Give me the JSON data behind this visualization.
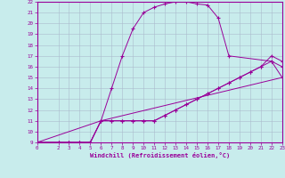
{
  "xlabel": "Windchill (Refroidissement éolien,°C)",
  "xlim": [
    0,
    23
  ],
  "ylim": [
    9,
    22
  ],
  "yticks": [
    9,
    10,
    11,
    12,
    13,
    14,
    15,
    16,
    17,
    18,
    19,
    20,
    21,
    22
  ],
  "xticks": [
    0,
    2,
    3,
    4,
    5,
    6,
    7,
    8,
    9,
    10,
    11,
    12,
    13,
    14,
    15,
    16,
    17,
    18,
    19,
    20,
    21,
    22,
    23
  ],
  "bg_color": "#c8ecec",
  "line_color": "#990099",
  "grid_color": "#aabbcc",
  "line1_x": [
    0,
    2,
    3,
    4,
    5,
    6,
    7,
    8,
    9,
    10,
    11,
    12,
    13,
    14,
    15,
    16,
    17,
    18,
    22,
    23
  ],
  "line1_y": [
    9,
    9,
    9,
    9,
    9,
    11,
    14,
    17,
    19.5,
    21,
    21.5,
    21.8,
    22,
    22,
    21.8,
    21.7,
    20.5,
    17,
    16.5,
    16
  ],
  "line2_x": [
    0,
    2,
    3,
    4,
    5,
    6,
    7,
    8,
    9,
    10,
    11,
    12,
    13,
    14,
    15,
    16,
    17,
    18,
    19,
    20,
    21,
    22,
    23
  ],
  "line2_y": [
    9,
    9,
    9,
    9,
    9,
    11,
    11,
    11,
    11,
    11,
    11,
    11.5,
    12,
    12.5,
    13,
    13.5,
    14,
    14.5,
    15,
    15.5,
    16,
    17,
    16.5
  ],
  "line3_x": [
    0,
    2,
    3,
    4,
    5,
    6,
    7,
    8,
    9,
    10,
    11,
    12,
    13,
    14,
    15,
    16,
    17,
    18,
    19,
    20,
    21,
    22,
    23
  ],
  "line3_y": [
    9,
    9,
    9,
    9,
    9,
    11,
    11,
    11,
    11,
    11,
    11,
    11.5,
    12,
    12.5,
    13,
    13.5,
    14,
    14.5,
    15,
    15.5,
    16,
    16.5,
    15
  ],
  "line4_x": [
    0,
    6,
    23
  ],
  "line4_y": [
    9,
    11,
    15
  ]
}
